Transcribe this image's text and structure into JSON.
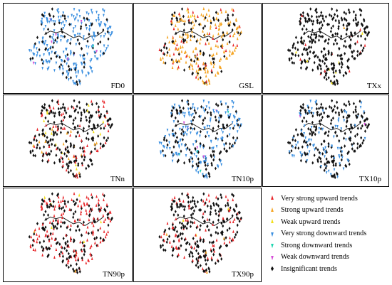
{
  "colors": {
    "very_strong_up": "#e8262a",
    "strong_up": "#f5a524",
    "weak_up": "#f2e01c",
    "very_strong_down": "#3a8fe0",
    "strong_down": "#1fd6b0",
    "weak_down": "#d64fd8",
    "insignificant": "#111111"
  },
  "legend": {
    "items": [
      {
        "key": "very_strong_up",
        "label": "Very strong upward trends",
        "icon": "up-triangle-marker"
      },
      {
        "key": "strong_up",
        "label": "Strong upward trends",
        "icon": "up-triangle-marker"
      },
      {
        "key": "weak_up",
        "label": "Weak upward trends",
        "icon": "up-triangle-marker"
      },
      {
        "key": "very_strong_down",
        "label": "Very strong downward trends",
        "icon": "down-triangle-marker"
      },
      {
        "key": "strong_down",
        "label": "Strong downward trends",
        "icon": "down-triangle-marker"
      },
      {
        "key": "weak_down",
        "label": "Weak downward trends",
        "icon": "down-triangle-marker"
      },
      {
        "key": "insignificant",
        "label": "Insignificant trends",
        "icon": "diamond-marker"
      }
    ]
  },
  "panels": [
    {
      "id": "fd0",
      "label": "FD0",
      "trend_share": {
        "very_strong_down": 0.74,
        "insignificant": 0.23,
        "weak_down": 0.02,
        "strong_down": 0.01
      }
    },
    {
      "id": "gsl",
      "label": "GSL",
      "trend_share": {
        "strong_up": 0.55,
        "very_strong_up": 0.12,
        "insignificant": 0.31,
        "weak_up": 0.02
      }
    },
    {
      "id": "txx",
      "label": "TXx",
      "trend_share": {
        "insignificant": 0.9,
        "very_strong_up": 0.06,
        "strong_up": 0.02,
        "weak_up": 0.02
      }
    },
    {
      "id": "tnn",
      "label": "TNn",
      "trend_share": {
        "insignificant": 0.7,
        "very_strong_up": 0.22,
        "strong_up": 0.04,
        "weak_up": 0.04
      }
    },
    {
      "id": "tn10p",
      "label": "TN10p",
      "trend_share": {
        "very_strong_down": 0.55,
        "insignificant": 0.4,
        "weak_down": 0.03,
        "strong_down": 0.02
      }
    },
    {
      "id": "tx10p",
      "label": "TX10p",
      "trend_share": {
        "insignificant": 0.72,
        "very_strong_down": 0.26,
        "weak_down": 0.02
      }
    },
    {
      "id": "tn90p",
      "label": "TN90p",
      "trend_share": {
        "very_strong_up": 0.5,
        "insignificant": 0.48,
        "strong_up": 0.01,
        "weak_up": 0.01
      }
    },
    {
      "id": "tx90p",
      "label": "TX90p",
      "trend_share": {
        "insignificant": 0.72,
        "very_strong_up": 0.25,
        "strong_up": 0.02,
        "weak_up": 0.01
      }
    }
  ]
}
